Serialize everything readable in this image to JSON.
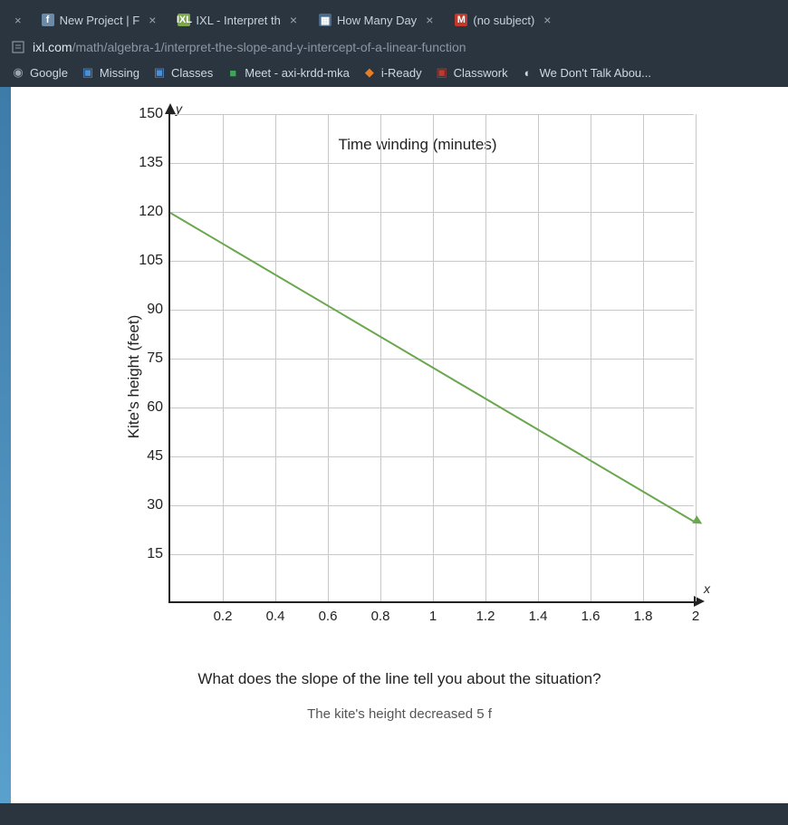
{
  "browser": {
    "tabs": [
      {
        "favicon_label": "f",
        "favicon_bg": "#6a8aa8",
        "title": "New Project | F"
      },
      {
        "favicon_label": "IXL",
        "favicon_bg": "#7aa84a",
        "title": "IXL - Interpret th"
      },
      {
        "favicon_label": "▦",
        "favicon_bg": "#4a6a8a",
        "title": "How Many Day"
      },
      {
        "favicon_label": "M",
        "favicon_bg": "#c0392b",
        "title": "(no subject)"
      }
    ],
    "url_host": "ixl.com",
    "url_path": "/math/algebra-1/interpret-the-slope-and-y-intercept-of-a-linear-function",
    "bookmarks": [
      {
        "icon": "◉",
        "icon_color": "#9aa6b0",
        "label": "Google"
      },
      {
        "icon": "▣",
        "icon_color": "#4a90d9",
        "label": "Missing"
      },
      {
        "icon": "▣",
        "icon_color": "#4a90d9",
        "label": "Classes"
      },
      {
        "icon": "■",
        "icon_color": "#3aa757",
        "label": "Meet - axi-krdd-mka"
      },
      {
        "icon": "◆",
        "icon_color": "#e67e22",
        "label": "i-Ready"
      },
      {
        "icon": "▣",
        "icon_color": "#c0392b",
        "label": "Classwork"
      },
      {
        "icon": "◐",
        "icon_color": "#d0d8e0",
        "label": "We Don't Talk Abou..."
      }
    ]
  },
  "chart": {
    "type": "line",
    "y_axis_label": "Kite's height (feet)",
    "x_axis_label": "Time winding (minutes)",
    "y_letter": "y",
    "x_letter": "x",
    "y_ticks": [
      15,
      30,
      45,
      60,
      75,
      90,
      105,
      120,
      135,
      150
    ],
    "x_ticks": [
      0.2,
      0.4,
      0.6,
      0.8,
      1,
      1.2,
      1.4,
      1.6,
      1.8,
      2
    ],
    "ylim": [
      0,
      150
    ],
    "xlim": [
      0,
      2
    ],
    "line_color": "#6aa84f",
    "grid_color": "#c8c8c8",
    "axis_color": "#222222",
    "background_color": "#ffffff",
    "label_fontsize": 17,
    "tick_fontsize": 16,
    "line_points": [
      {
        "x": 0,
        "y": 120
      },
      {
        "x": 2,
        "y": 25
      }
    ]
  },
  "question": "What does the slope of the line tell you about the situation?",
  "cutoff_text": "The kite's height decreased 5 f"
}
